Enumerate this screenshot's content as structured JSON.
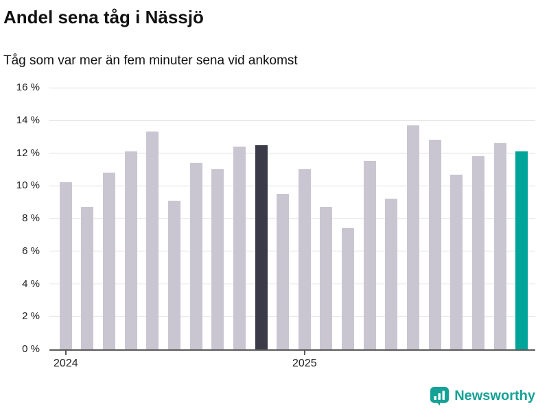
{
  "chart_data": {
    "type": "bar",
    "title": "Andel sena tåg i Nässjö",
    "subtitle": "Tåg som var mer än fem minuter sena vid ankomst",
    "xlabel": "",
    "ylabel": "",
    "ylim": [
      0,
      16
    ],
    "ytick_step": 2,
    "ytick_suffix": " %",
    "ytick_labels": [
      "0 %",
      "2 %",
      "4 %",
      "6 %",
      "8 %",
      "10 %",
      "12 %",
      "14 %",
      "16 %"
    ],
    "grid": true,
    "values": [
      10.2,
      8.7,
      10.8,
      12.1,
      13.3,
      9.1,
      11.4,
      11.0,
      12.4,
      12.5,
      9.5,
      11.0,
      8.7,
      7.4,
      11.5,
      9.2,
      13.7,
      12.8,
      10.7,
      11.8,
      12.6,
      12.1
    ],
    "x_ticks": [
      {
        "label": "2024",
        "bar_index": 0
      },
      {
        "label": "2025",
        "bar_index": 11
      }
    ],
    "colors": {
      "default": "#c9c6d1",
      "dark": "#3b3a48",
      "dark_index": 9,
      "accent": "#00a499",
      "accent_index": 21,
      "gridline": "#dcdcdc",
      "axis": "#595959"
    }
  },
  "footer": {
    "brand": "Newsworthy",
    "brand_color": "#14a296"
  }
}
